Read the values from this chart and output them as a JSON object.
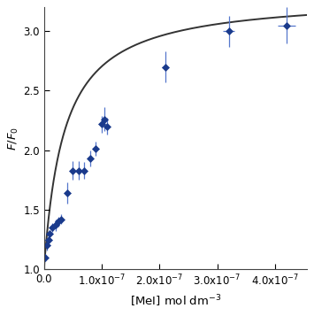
{
  "x_data": [
    2e-09,
    5e-09,
    8e-09,
    1e-08,
    1.5e-08,
    2e-08,
    2.5e-08,
    3e-08,
    4e-08,
    5e-08,
    6e-08,
    7e-08,
    8e-08,
    9e-08,
    1e-07,
    1.05e-07,
    1.1e-07,
    2.1e-07,
    3.2e-07,
    4.2e-07
  ],
  "y_data": [
    1.1,
    1.2,
    1.25,
    1.3,
    1.35,
    1.37,
    1.4,
    1.42,
    1.64,
    1.83,
    1.83,
    1.83,
    1.93,
    2.01,
    2.22,
    2.26,
    2.2,
    2.7,
    3.0,
    3.05
  ],
  "y_err": [
    0.03,
    0.04,
    0.03,
    0.03,
    0.04,
    0.05,
    0.04,
    0.04,
    0.09,
    0.08,
    0.08,
    0.07,
    0.07,
    0.06,
    0.07,
    0.1,
    0.07,
    0.13,
    0.13,
    0.15
  ],
  "x_err": [
    0.0,
    0.0,
    0.0,
    0.0,
    0.0,
    0.0,
    0.0,
    0.0,
    0.0,
    0.0,
    0.0,
    0.0,
    0.0,
    0.0,
    0.0,
    0.0,
    0.0,
    5e-09,
    1e-08,
    1.5e-08
  ],
  "marker_color": "#1a3a8c",
  "marker_edge_color": "#1a3a8c",
  "error_color": "#5577cc",
  "fit_color": "#333333",
  "fit_linewidth": 1.4,
  "xlim": [
    0.0,
    4.55e-07
  ],
  "ylim": [
    1.0,
    3.2
  ],
  "xlabel": "[MeI] mol dm$^{-3}$",
  "ylabel": "$F/F_0$",
  "xlabel_fontsize": 9.5,
  "ylabel_fontsize": 9.5,
  "tick_fontsize": 8.5,
  "Kd": 3.5e-08,
  "Fmax": 3.3,
  "F0": 1.0,
  "xticks": [
    0.0,
    1e-07,
    2e-07,
    3e-07,
    4e-07
  ],
  "yticks": [
    1.0,
    1.5,
    2.0,
    2.5,
    3.0
  ],
  "background_color": "#ffffff"
}
